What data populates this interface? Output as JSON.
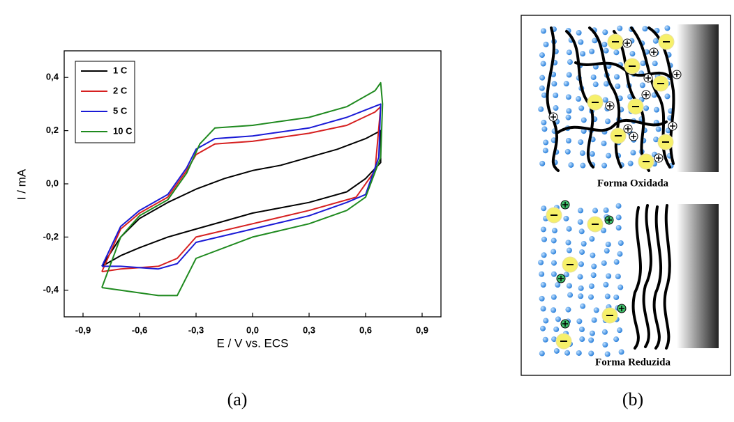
{
  "chart_data": {
    "type": "line",
    "xlabel": "E / V vs. ECS",
    "ylabel": "I / mA",
    "xlim": [
      -1.0,
      1.0
    ],
    "ylim": [
      -0.5,
      0.5
    ],
    "xticks": [
      {
        "value": -0.9,
        "label": "-0,9"
      },
      {
        "value": -0.6,
        "label": "-0,6"
      },
      {
        "value": -0.3,
        "label": "-0,3"
      },
      {
        "value": 0,
        "label": "0,0"
      },
      {
        "value": 0.3,
        "label": "0,3"
      },
      {
        "value": 0.6,
        "label": "0,6"
      },
      {
        "value": 0.9,
        "label": "0,9"
      }
    ],
    "yticks": [
      {
        "value": -0.4,
        "label": "-0,4"
      },
      {
        "value": -0.2,
        "label": "-0,2"
      },
      {
        "value": 0,
        "label": "0,0"
      },
      {
        "value": 0.2,
        "label": "0,2"
      },
      {
        "value": 0.4,
        "label": "0,4"
      }
    ],
    "legend": "upper left",
    "series": [
      {
        "name": "1 C",
        "color": "#000000",
        "x": [
          -0.8,
          -0.7,
          -0.6,
          -0.45,
          -0.3,
          -0.15,
          0,
          0.15,
          0.3,
          0.45,
          0.6,
          0.68,
          0.68,
          0.6,
          0.5,
          0.3,
          0.15,
          0,
          -0.15,
          -0.3,
          -0.45,
          -0.6,
          -0.7,
          -0.8
        ],
        "values": [
          -0.31,
          -0.2,
          -0.13,
          -0.07,
          -0.02,
          0.02,
          0.05,
          0.07,
          0.1,
          0.13,
          0.17,
          0.2,
          0.08,
          0.02,
          -0.03,
          -0.07,
          -0.09,
          -0.11,
          -0.14,
          -0.17,
          -0.2,
          -0.24,
          -0.27,
          -0.31
        ]
      },
      {
        "name": "2 C",
        "color": "#d62020",
        "x": [
          -0.8,
          -0.7,
          -0.6,
          -0.45,
          -0.35,
          -0.3,
          -0.2,
          0,
          0.3,
          0.5,
          0.65,
          0.68,
          0.65,
          0.55,
          0.3,
          0,
          -0.3,
          -0.4,
          -0.5,
          -0.7,
          -0.8
        ],
        "values": [
          -0.33,
          -0.17,
          -0.11,
          -0.05,
          0.05,
          0.11,
          0.15,
          0.16,
          0.19,
          0.22,
          0.27,
          0.29,
          0.05,
          -0.05,
          -0.1,
          -0.15,
          -0.2,
          -0.28,
          -0.31,
          -0.32,
          -0.33
        ]
      },
      {
        "name": "5 C",
        "color": "#1a1ad6",
        "x": [
          -0.8,
          -0.7,
          -0.6,
          -0.45,
          -0.35,
          -0.3,
          -0.2,
          0,
          0.3,
          0.5,
          0.68,
          0.67,
          0.6,
          0.5,
          0.3,
          0,
          -0.3,
          -0.4,
          -0.5,
          -0.7,
          -0.8
        ],
        "values": [
          -0.31,
          -0.16,
          -0.1,
          -0.04,
          0.06,
          0.13,
          0.17,
          0.18,
          0.21,
          0.25,
          0.3,
          0.1,
          -0.04,
          -0.07,
          -0.12,
          -0.17,
          -0.22,
          -0.3,
          -0.32,
          -0.31,
          -0.31
        ]
      },
      {
        "name": "10 C",
        "color": "#1f8a1f",
        "x": [
          -0.8,
          -0.7,
          -0.6,
          -0.45,
          -0.35,
          -0.28,
          -0.2,
          0,
          0.3,
          0.5,
          0.65,
          0.68,
          0.69,
          0.68,
          0.6,
          0.5,
          0.3,
          0,
          -0.3,
          -0.4,
          -0.5,
          -0.7,
          -0.8
        ],
        "values": [
          -0.39,
          -0.2,
          -0.12,
          -0.06,
          0.04,
          0.15,
          0.21,
          0.22,
          0.25,
          0.29,
          0.35,
          0.38,
          0.3,
          0.1,
          -0.05,
          -0.1,
          -0.15,
          -0.2,
          -0.28,
          -0.42,
          -0.42,
          -0.4,
          -0.39
        ]
      }
    ]
  },
  "panels": {
    "a": "(a)",
    "b": "(b)"
  },
  "diagram": {
    "top_label": "Forma Oxidada",
    "bottom_label": "Forma Reduzida"
  }
}
